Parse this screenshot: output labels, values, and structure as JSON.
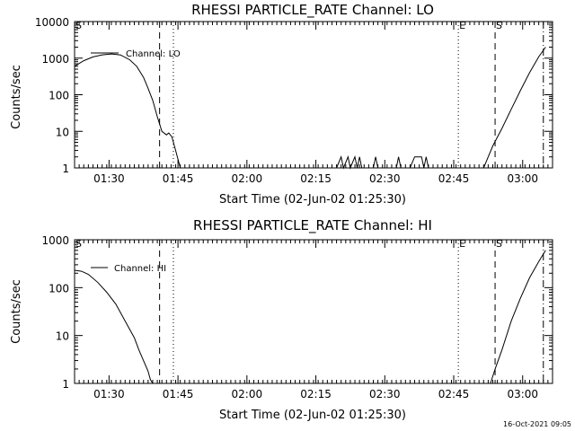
{
  "colors": {
    "background": "#ffffff",
    "ink": "#000000"
  },
  "footer": {
    "timestamp": "16-Oct-2021 09:05"
  },
  "chart_data": [
    {
      "type": "line",
      "title": "RHESSI PARTICLE_RATE Channel: LO",
      "xlabel": "Start Time (02-Jun-02 01:25:30)",
      "ylabel": "Counts/sec",
      "yscale": "log",
      "ylim": [
        1,
        10000
      ],
      "xlim_minutes": [
        -3,
        101
      ],
      "x_tick_minutes": [
        4.5,
        19.5,
        34.5,
        49.5,
        64.5,
        79.5,
        94.5
      ],
      "x_tick_labels": [
        "01:30",
        "01:45",
        "02:00",
        "02:15",
        "02:30",
        "02:45",
        "03:00"
      ],
      "y_ticks": [
        1,
        10,
        100,
        1000,
        10000
      ],
      "y_tick_labels": [
        "1",
        "10",
        "100",
        "1000",
        "10000"
      ],
      "legend": {
        "label": "Channel: LO",
        "position": "top-left"
      },
      "markers": [
        {
          "label": "S",
          "minute": -3,
          "style": "none"
        },
        {
          "label": "",
          "minute": 15.5,
          "style": "dashed"
        },
        {
          "label": "",
          "minute": 18.5,
          "style": "dotted"
        },
        {
          "label": "E",
          "minute": 80.5,
          "style": "dotted"
        },
        {
          "label": "S",
          "minute": 88.5,
          "style": "dashed"
        },
        {
          "label": "",
          "minute": 99,
          "style": "dashdot"
        }
      ],
      "series": [
        {
          "name": "Channel: LO",
          "segments": [
            [
              [
                -3,
                600
              ],
              [
                -1,
                850
              ],
              [
                1,
                1080
              ],
              [
                3,
                1230
              ],
              [
                5,
                1300
              ],
              [
                7,
                1220
              ],
              [
                9,
                900
              ],
              [
                10.5,
                600
              ],
              [
                12,
                300
              ],
              [
                13,
                150
              ],
              [
                14,
                70
              ],
              [
                15,
                25
              ],
              [
                16,
                10
              ],
              [
                17,
                8
              ],
              [
                17.5,
                9
              ],
              [
                18.2,
                7
              ],
              [
                19,
                3
              ],
              [
                20,
                1
              ]
            ],
            [
              [
                54,
                1
              ],
              [
                55,
                2
              ],
              [
                55.5,
                1
              ],
              [
                56.5,
                2
              ],
              [
                57,
                1
              ],
              [
                58,
                2
              ],
              [
                58.5,
                1
              ],
              [
                59,
                2
              ],
              [
                59.5,
                1
              ],
              [
                62,
                1
              ],
              [
                62.5,
                2
              ],
              [
                63,
                1
              ],
              [
                67,
                1
              ],
              [
                67.5,
                2
              ],
              [
                68,
                1
              ],
              [
                70,
                1
              ],
              [
                71,
                2
              ],
              [
                71.5,
                2
              ],
              [
                72.5,
                2
              ],
              [
                73,
                1
              ],
              [
                73.5,
                2
              ],
              [
                74,
                1
              ]
            ],
            [
              [
                86,
                1
              ],
              [
                87,
                2
              ],
              [
                88,
                4
              ],
              [
                90,
                12
              ],
              [
                92,
                40
              ],
              [
                94,
                130
              ],
              [
                96,
                400
              ],
              [
                98,
                1100
              ],
              [
                99.5,
                2000
              ]
            ]
          ]
        }
      ]
    },
    {
      "type": "line",
      "title": "RHESSI PARTICLE_RATE Channel: HI",
      "xlabel": "Start Time (02-Jun-02 01:25:30)",
      "ylabel": "Counts/sec",
      "yscale": "log",
      "ylim": [
        1,
        1000
      ],
      "xlim_minutes": [
        -3,
        101
      ],
      "x_tick_minutes": [
        4.5,
        19.5,
        34.5,
        49.5,
        64.5,
        79.5,
        94.5
      ],
      "x_tick_labels": [
        "01:30",
        "01:45",
        "02:00",
        "02:15",
        "02:30",
        "02:45",
        "03:00"
      ],
      "y_ticks": [
        1,
        10,
        100,
        1000
      ],
      "y_tick_labels": [
        "1",
        "10",
        "100",
        "1000"
      ],
      "legend": {
        "label": "Channel: HI",
        "position": "top-left"
      },
      "markers": [
        {
          "label": "S",
          "minute": -3,
          "style": "none"
        },
        {
          "label": "",
          "minute": 15.5,
          "style": "dashed"
        },
        {
          "label": "",
          "minute": 18.5,
          "style": "dotted"
        },
        {
          "label": "E",
          "minute": 80.5,
          "style": "dotted"
        },
        {
          "label": "S",
          "minute": 88.5,
          "style": "dashed"
        },
        {
          "label": "",
          "minute": 99,
          "style": "dashdot"
        }
      ],
      "series": [
        {
          "name": "Channel: HI",
          "segments": [
            [
              [
                -3,
                230
              ],
              [
                -1.5,
                220
              ],
              [
                0,
                190
              ],
              [
                2,
                130
              ],
              [
                4,
                80
              ],
              [
                6,
                45
              ],
              [
                8,
                20
              ],
              [
                10,
                9
              ],
              [
                11,
                5
              ],
              [
                12,
                3
              ],
              [
                13,
                1.8
              ],
              [
                13.5,
                1.2
              ],
              [
                14,
                1
              ]
            ],
            [
              [
                87.5,
                1
              ],
              [
                88.5,
                2
              ],
              [
                90,
                5
              ],
              [
                92,
                20
              ],
              [
                94,
                60
              ],
              [
                96,
                160
              ],
              [
                98,
                350
              ],
              [
                99.5,
                600
              ]
            ]
          ]
        }
      ]
    }
  ]
}
